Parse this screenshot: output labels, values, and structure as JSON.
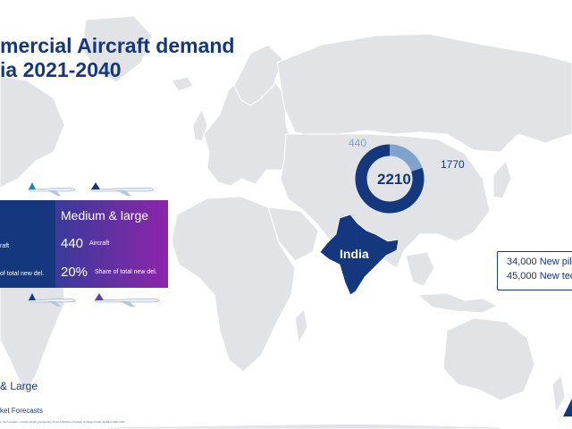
{
  "title": {
    "line1": "mercial Aircraft demand",
    "line2": "ia 2021-2040"
  },
  "donut": {
    "total": "2210",
    "small_value": "440",
    "large_value": "1770",
    "segments": [
      {
        "label": "440",
        "value": 440,
        "color": "#7fa3c9"
      },
      {
        "label": "1770",
        "value": 1770,
        "color": "#14377d"
      }
    ]
  },
  "country_label": "India",
  "panel": {
    "left_line1": "raft",
    "left_line2": "of total new del.",
    "header": "Medium & large",
    "aircraft_value": "440",
    "aircraft_unit": "Aircraft",
    "share_value": "20%",
    "share_label": "Share of total new del."
  },
  "legend": {
    "pilots": "34,000 New pil",
    "technicians": "45,000 New tec"
  },
  "footer": {
    "category": "& Large",
    "source": "ket Forecasts",
    "fineprint": "s, Tech Aviation, Curtiss Wright engineering, Pratt & Whitney Canada, Embraer freight facilities ARE 2021"
  },
  "colors": {
    "navy": "#14377d",
    "light_blue": "#7fa3c9",
    "map_grey": "#e1e3e6",
    "purple": "#8e24aa"
  }
}
